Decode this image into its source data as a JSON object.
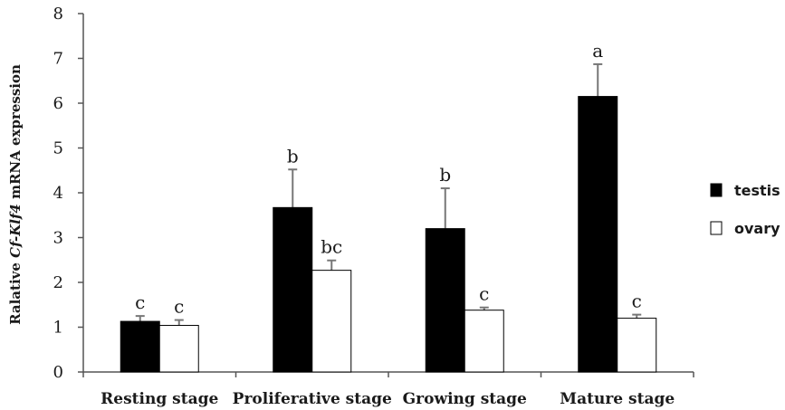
{
  "chart_data": {
    "type": "bar",
    "categories": [
      "Resting stage",
      "Proliferative stage",
      "Growing stage",
      "Mature stage"
    ],
    "series": [
      {
        "name": "testis",
        "values": [
          1.13,
          3.67,
          3.2,
          6.15
        ],
        "errors": [
          0.12,
          0.85,
          0.9,
          0.72
        ],
        "labels": [
          "c",
          "b",
          "b",
          "a"
        ],
        "color": "#000000"
      },
      {
        "name": "ovary",
        "values": [
          1.04,
          2.27,
          1.38,
          1.2
        ],
        "errors": [
          0.12,
          0.22,
          0.06,
          0.08
        ],
        "labels": [
          "c",
          "bc",
          "c",
          "c"
        ],
        "color": "#ffffff"
      }
    ],
    "ylabel": {
      "prefix": "Ralative ",
      "italic": "Cf-Klf4",
      "suffix": " mRNA expression"
    },
    "ylim": [
      0,
      8
    ],
    "yticks": [
      "0",
      "1",
      "2",
      "3",
      "4",
      "5",
      "6",
      "7",
      "8"
    ],
    "grid": false,
    "legend_position": "right"
  }
}
